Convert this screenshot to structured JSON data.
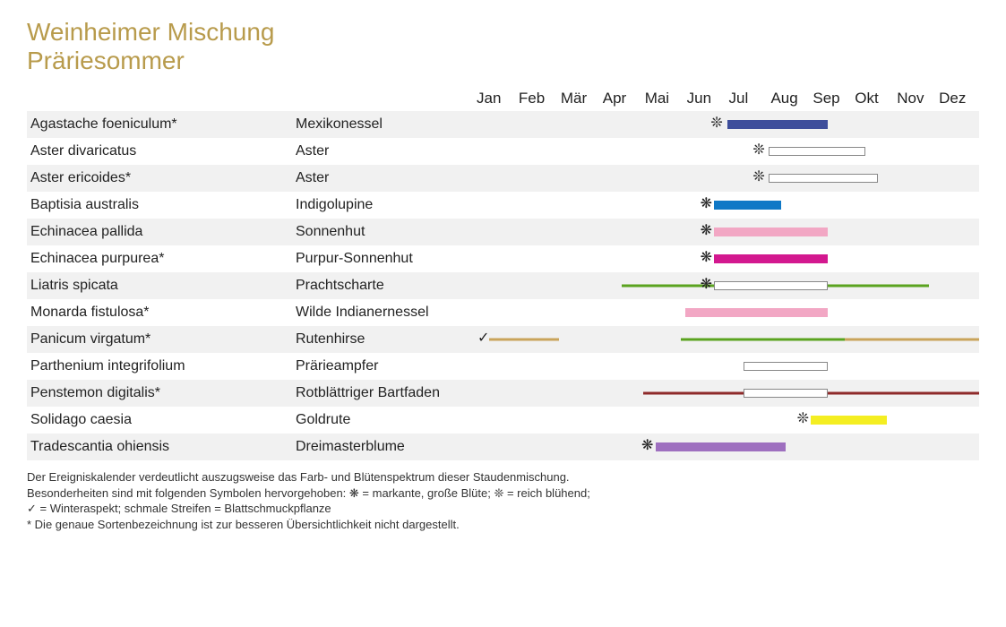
{
  "title_line1": "Weinheimer Mischung",
  "title_line2": "Präriesommer",
  "title_color": "#b89b4c",
  "months": [
    "Jan",
    "Feb",
    "Mär",
    "Apr",
    "Mai",
    "Jun",
    "Jul",
    "Aug",
    "Sep",
    "Okt",
    "Nov",
    "Dez"
  ],
  "row_stripe_color": "#f1f1f1",
  "symbols": {
    "big_flower": "❋",
    "abundant": "❊",
    "winter": "✓"
  },
  "plants": [
    {
      "latin": "Agastache foeniculum*",
      "common": "Mexikonessel",
      "symbol": "abundant",
      "symbol_at": 5.9,
      "bars": [
        {
          "start": 6.0,
          "end": 8.4,
          "color": "#3e4e9b",
          "style": "solid"
        }
      ]
    },
    {
      "latin": "Aster divaricatus",
      "common": "Aster",
      "symbol": "abundant",
      "symbol_at": 6.9,
      "bars": [
        {
          "start": 7.0,
          "end": 9.3,
          "color": "#ffffff",
          "style": "hollow"
        }
      ]
    },
    {
      "latin": "Aster ericoides*",
      "common": "Aster",
      "symbol": "abundant",
      "symbol_at": 6.9,
      "bars": [
        {
          "start": 7.0,
          "end": 9.6,
          "color": "#ffffff",
          "style": "hollow"
        }
      ]
    },
    {
      "latin": "Baptisia australis",
      "common": "Indigolupine",
      "symbol": "big_flower",
      "symbol_at": 5.65,
      "bars": [
        {
          "start": 5.7,
          "end": 7.3,
          "color": "#0f78c6",
          "style": "solid"
        }
      ]
    },
    {
      "latin": "Echinacea pallida",
      "common": "Sonnenhut",
      "symbol": "big_flower",
      "symbol_at": 5.65,
      "bars": [
        {
          "start": 5.7,
          "end": 8.4,
          "color": "#f2a7c4",
          "style": "solid"
        }
      ]
    },
    {
      "latin": "Echinacea purpurea*",
      "common": "Purpur-Sonnenhut",
      "symbol": "big_flower",
      "symbol_at": 5.65,
      "bars": [
        {
          "start": 5.7,
          "end": 8.4,
          "color": "#d3188f",
          "style": "solid"
        }
      ]
    },
    {
      "latin": "Liatris spicata",
      "common": "Prachtscharte",
      "symbol": "big_flower",
      "symbol_at": 5.65,
      "bars": [
        {
          "start": 3.5,
          "end": 10.8,
          "color": "#5aa31f",
          "style": "thin"
        },
        {
          "start": 5.7,
          "end": 8.4,
          "color": "#ffffff",
          "style": "hollow"
        }
      ]
    },
    {
      "latin": "Monarda fistulosa*",
      "common": "Wilde Indianernessel",
      "bars": [
        {
          "start": 5.0,
          "end": 8.4,
          "color": "#f2a7c4",
          "style": "solid"
        }
      ]
    },
    {
      "latin": "Panicum virgatum*",
      "common": "Rutenhirse",
      "symbol": "winter",
      "symbol_at": 0.35,
      "bars": [
        {
          "start": 0.35,
          "end": 2.0,
          "color": "#c9a45a",
          "style": "thin"
        },
        {
          "start": 4.9,
          "end": 8.8,
          "color": "#5aa31f",
          "style": "thin"
        },
        {
          "start": 8.8,
          "end": 12.0,
          "color": "#c9a45a",
          "style": "thin"
        }
      ]
    },
    {
      "latin": "Parthenium integrifolium",
      "common": "Prärieampfer",
      "bars": [
        {
          "start": 6.4,
          "end": 8.4,
          "color": "#ffffff",
          "style": "hollow"
        }
      ]
    },
    {
      "latin": "Penstemon digitalis*",
      "common": "Rotblättriger Bartfaden",
      "bars": [
        {
          "start": 4.0,
          "end": 12.0,
          "color": "#8e2a2a",
          "style": "thin"
        },
        {
          "start": 6.4,
          "end": 8.4,
          "color": "#ffffff",
          "style": "hollow"
        }
      ]
    },
    {
      "latin": "Solidago caesia",
      "common": "Goldrute",
      "symbol": "abundant",
      "symbol_at": 7.95,
      "bars": [
        {
          "start": 8.0,
          "end": 9.8,
          "color": "#f4ee22",
          "style": "solid"
        }
      ]
    },
    {
      "latin": "Tradescantia ohiensis",
      "common": "Dreimasterblume",
      "symbol": "big_flower",
      "symbol_at": 4.25,
      "bars": [
        {
          "start": 4.3,
          "end": 7.4,
          "color": "#9e6fbf",
          "style": "solid"
        }
      ]
    }
  ],
  "legend_lines": [
    "Der Ereigniskalender verdeutlicht auszugsweise das Farb- und Blütenspektrum dieser Staudenmischung.",
    "Besonderheiten sind mit folgenden Symbolen hervorgehoben: ❋ = markante, große Blüte; ❊ = reich blühend;",
    "✓ = Winteraspekt; schmale Streifen = Blattschmuckpflanze",
    "* Die genaue Sortenbezeichnung ist zur besseren Übersichtlichkeit nicht dargestellt."
  ]
}
